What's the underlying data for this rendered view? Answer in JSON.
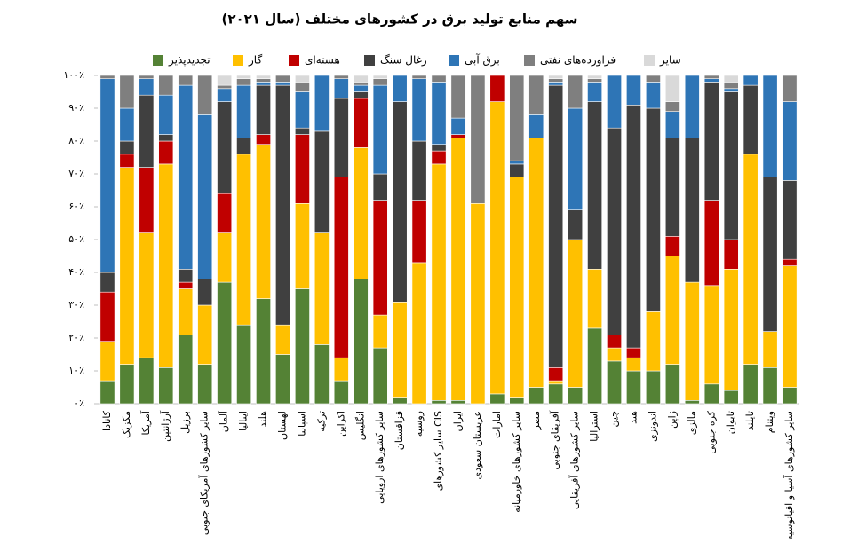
{
  "chart_data": {
    "type": "stacked_bar",
    "title": "سهم منابع تولید برق در کشورهای مختلف (سال ۲۰۲۱)",
    "categories": [
      "کانادا",
      "مکزیک",
      "آمریکا",
      "آرژانتین",
      "برزیل",
      "سایر کشورهای آمریکای جنوبی",
      "آلمان",
      "ایتالیا",
      "هلند",
      "لهستان",
      "اسپانیا",
      "ترکیه",
      "اکراین",
      "انگلیس",
      "سایر کشورهای اروپایی",
      "قزاقستان",
      "روسیه",
      "سایر کشورهای CIS",
      "ایران",
      "عربستان سعودی",
      "امارات",
      "سایر کشورهای خاورمیانه",
      "مصر",
      "آفریقای جنوبی",
      "سایر کشورهای آفریقایی",
      "استرالیا",
      "چین",
      "هند",
      "اندونزی",
      "ژاپن",
      "مالزی",
      "کره جنوبی",
      "تایوان",
      "تایلند",
      "ویتنام",
      "سایر کشورهای آسیا و اقیانوسیه"
    ],
    "series": [
      {
        "name": "تجدیدپذیر",
        "color": "#548235",
        "values": [
          7,
          12,
          14,
          11,
          21,
          12,
          37,
          24,
          32,
          15,
          35,
          18,
          7,
          38,
          17,
          2,
          0,
          1,
          1,
          0,
          3,
          2,
          5,
          6,
          5,
          23,
          13,
          10,
          10,
          12,
          1,
          6,
          4,
          12,
          11,
          5
        ]
      },
      {
        "name": "گاز",
        "color": "#ffc000",
        "values": [
          12,
          60,
          38,
          62,
          14,
          18,
          15,
          52,
          47,
          9,
          26,
          34,
          7,
          40,
          10,
          29,
          43,
          72,
          80,
          61,
          89,
          67,
          76,
          1,
          45,
          18,
          4,
          4,
          18,
          33,
          36,
          30,
          37,
          64,
          11,
          37
        ]
      },
      {
        "name": "هسته‌ای",
        "color": "#c00000",
        "values": [
          15,
          4,
          20,
          7,
          2,
          0,
          12,
          0,
          3,
          0,
          21,
          0,
          55,
          15,
          35,
          0,
          19,
          4,
          1,
          0,
          8,
          0,
          0,
          4,
          0,
          0,
          4,
          3,
          0,
          6,
          0,
          26,
          9,
          0,
          0,
          2
        ]
      },
      {
        "name": "زغال سنگ",
        "color": "#404040",
        "values": [
          6,
          4,
          22,
          2,
          4,
          8,
          28,
          5,
          15,
          73,
          2,
          31,
          24,
          2,
          8,
          61,
          18,
          2,
          0,
          0,
          0,
          4,
          0,
          86,
          9,
          51,
          63,
          74,
          62,
          30,
          44,
          36,
          45,
          21,
          47,
          24
        ]
      },
      {
        "name": "برق آبی",
        "color": "#2e75b6",
        "values": [
          59,
          10,
          5,
          12,
          56,
          50,
          4,
          16,
          1,
          1,
          11,
          17,
          6,
          2,
          27,
          8,
          19,
          19,
          5,
          0,
          0,
          1,
          7,
          1,
          31,
          6,
          16,
          9,
          8,
          8,
          19,
          1,
          1,
          3,
          31,
          24
        ]
      },
      {
        "name": "فراورده‌های نفتی",
        "color": "#7f7f7f",
        "values": [
          1,
          10,
          1,
          6,
          3,
          12,
          1,
          2,
          1,
          2,
          3,
          0,
          1,
          1,
          2,
          0,
          1,
          2,
          13,
          39,
          0,
          26,
          12,
          1,
          10,
          1,
          0,
          0,
          2,
          3,
          0,
          1,
          2,
          0,
          0,
          8
        ]
      },
      {
        "name": "سایر",
        "color": "#d9d9d9",
        "values": [
          0,
          0,
          0,
          0,
          0,
          0,
          3,
          1,
          1,
          0,
          2,
          0,
          0,
          2,
          1,
          0,
          0,
          0,
          0,
          0,
          0,
          0,
          0,
          1,
          0,
          1,
          0,
          0,
          0,
          8,
          0,
          0,
          2,
          0,
          0,
          0
        ]
      }
    ],
    "ylim": [
      0,
      100
    ],
    "yticks": [
      {
        "value": 0,
        "label": "۰٪"
      },
      {
        "value": 10,
        "label": "۱۰٪"
      },
      {
        "value": 20,
        "label": "۲۰٪"
      },
      {
        "value": 30,
        "label": "۳۰٪"
      },
      {
        "value": 40,
        "label": "۴۰٪"
      },
      {
        "value": 50,
        "label": "۵۰٪"
      },
      {
        "value": 60,
        "label": "۶۰٪"
      },
      {
        "value": 70,
        "label": "۷۰٪"
      },
      {
        "value": 80,
        "label": "۸۰٪"
      },
      {
        "value": 90,
        "label": "۹۰٪"
      },
      {
        "value": 100,
        "label": "۱۰۰٪"
      }
    ],
    "grid": false
  }
}
